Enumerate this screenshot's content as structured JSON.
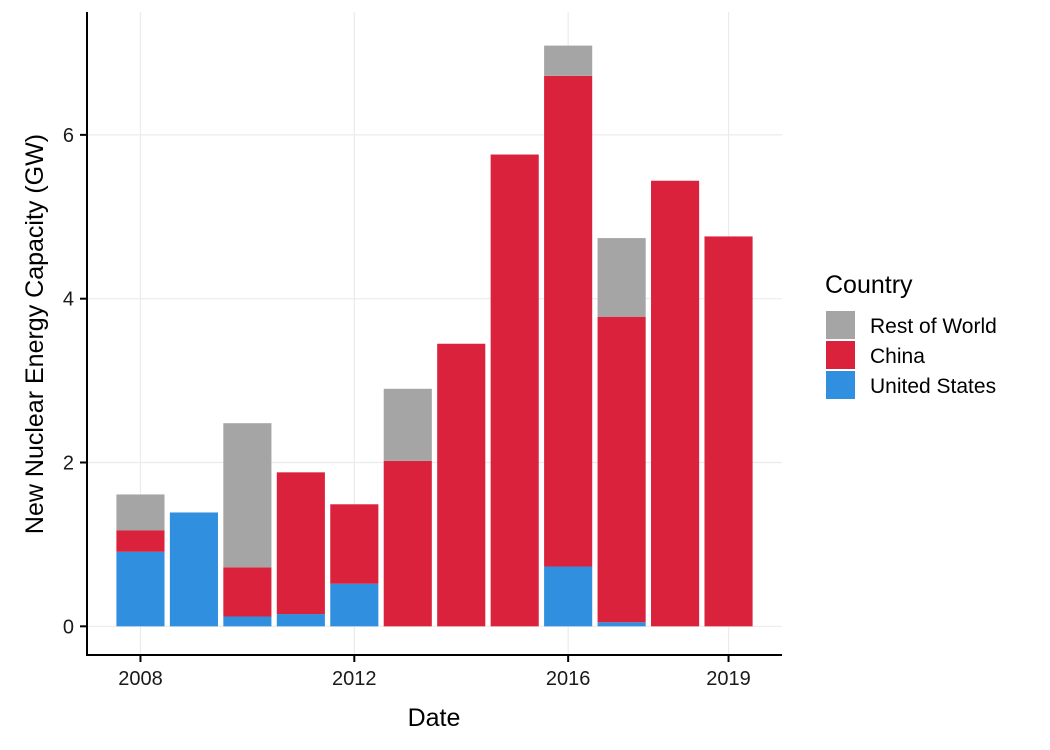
{
  "chart_data": {
    "type": "bar",
    "stacked": true,
    "xlabel": "Date",
    "ylabel": "New Nuclear Energy Capacity (GW)",
    "x_ticks": [
      2008,
      2012,
      2016,
      2019
    ],
    "y_ticks": [
      0,
      2,
      4,
      6
    ],
    "xlim": [
      2007,
      2020
    ],
    "ylim": [
      -0.35,
      7.5
    ],
    "grid": true,
    "legend": {
      "title": "Country",
      "position": "right"
    },
    "categories": [
      2008,
      2009,
      2010,
      2011,
      2012,
      2013,
      2014,
      2015,
      2016,
      2017,
      2018,
      2019
    ],
    "series": [
      {
        "name": "United States",
        "color": "#318FDF",
        "values": [
          0.91,
          1.39,
          0.12,
          0.15,
          0.52,
          0,
          0,
          0,
          0.73,
          0.05,
          0,
          0
        ]
      },
      {
        "name": "China",
        "color": "#DA223D",
        "values": [
          0.26,
          0,
          0.6,
          1.73,
          0.97,
          2.02,
          3.45,
          5.76,
          5.99,
          3.73,
          5.44,
          4.76
        ]
      },
      {
        "name": "Rest of World",
        "color": "#A5A5A5",
        "values": [
          0.44,
          0,
          1.76,
          0,
          0,
          0.88,
          0,
          0,
          0.37,
          0.96,
          0,
          0
        ]
      }
    ],
    "legend_order": [
      "Rest of World",
      "China",
      "United States"
    ]
  }
}
